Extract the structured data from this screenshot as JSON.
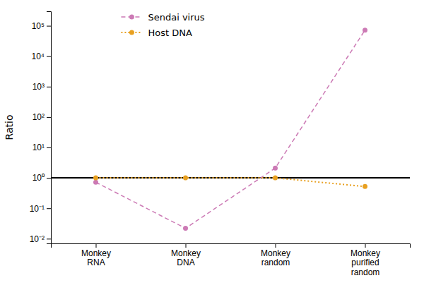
{
  "chart_data": {
    "type": "line",
    "y_label": "Ratio",
    "categories": [
      "Monkey\nRNA",
      "Monkey\nDNA",
      "Monkey\nrandom",
      "Monkey\npurified\nrandom"
    ],
    "series": [
      {
        "name": "Sendai virus",
        "color": "#cc7ab5",
        "line_style": "dashed",
        "marker": "circle",
        "values": [
          0.72,
          0.022,
          2.1,
          72000
        ]
      },
      {
        "name": "Host DNA",
        "color": "#e8a020",
        "line_style": "dotted",
        "marker": "circle",
        "values": [
          1.0,
          1.0,
          1.0,
          0.52
        ]
      }
    ],
    "hline": {
      "value": 1.0,
      "color": "#000000"
    },
    "log": "y",
    "ylim": [
      0.007,
      300000
    ],
    "yticks": [
      {
        "value": 0.01,
        "label": "10⁻²"
      },
      {
        "value": 0.1,
        "label": "10⁻¹"
      },
      {
        "value": 1,
        "label": "10⁰"
      },
      {
        "value": 10,
        "label": "10¹"
      },
      {
        "value": 100,
        "label": "10²"
      },
      {
        "value": 1000,
        "label": "10³"
      },
      {
        "value": 10000,
        "label": "10⁴"
      },
      {
        "value": 100000,
        "label": "10⁵"
      }
    ],
    "grid": false,
    "legend": "upper left"
  }
}
